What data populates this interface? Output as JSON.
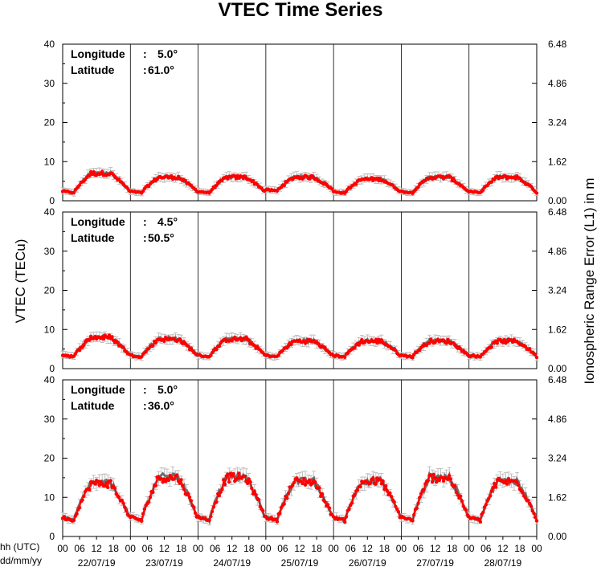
{
  "chart_data": {
    "type": "line",
    "title": "VTEC Time Series",
    "ylabel": "VTEC (TECu)",
    "ylabel_right": "Ionospheric Range Error (L1) in m",
    "xlabel_hours": "hh (UTC)",
    "xlabel_dates": "dd/mm/yy",
    "hour_ticks": [
      "00",
      "06",
      "12",
      "18",
      "00",
      "06",
      "12",
      "18",
      "00",
      "06",
      "12",
      "18",
      "00",
      "06",
      "12",
      "18",
      "00",
      "06",
      "12",
      "18",
      "00",
      "06",
      "12",
      "18",
      "00",
      "06",
      "12",
      "18",
      "00"
    ],
    "date_labels": [
      "22/07/19",
      "23/07/19",
      "24/07/19",
      "25/07/19",
      "26/07/19",
      "27/07/19",
      "28/07/19"
    ],
    "ylim": [
      0,
      40
    ],
    "yticks": [
      "0",
      "10",
      "20",
      "30",
      "40"
    ],
    "right_yticks": [
      "0.00",
      "1.62",
      "3.24",
      "4.86",
      "6.48"
    ],
    "colors": {
      "measured": "#ff0000",
      "reference": "#6e6e6e",
      "error_bars": "#b4b4b4"
    },
    "panels": [
      {
        "longitude_label": "Longitude",
        "longitude_value": "5.0°",
        "latitude_label": "Latitude",
        "latitude_value": "61.0°",
        "daily_max": [
          7,
          6,
          6,
          6,
          5.5,
          6,
          6
        ],
        "night_min": [
          2,
          2,
          2,
          2.5,
          2,
          2,
          2
        ]
      },
      {
        "longitude_label": "Longitude",
        "longitude_value": "4.5°",
        "latitude_label": "Latitude",
        "latitude_value": "50.5°",
        "daily_max": [
          8,
          7.5,
          7.5,
          7,
          7,
          7,
          7
        ],
        "night_min": [
          3,
          3,
          3,
          3,
          3,
          3,
          3
        ]
      },
      {
        "longitude_label": "Longitude",
        "longitude_value": "5.0°",
        "latitude_label": "Latitude",
        "latitude_value": "36.0°",
        "daily_max": [
          13.5,
          15,
          15,
          14,
          14,
          15,
          14
        ],
        "night_min": [
          4,
          4,
          4,
          4,
          4,
          4,
          4
        ]
      }
    ]
  }
}
